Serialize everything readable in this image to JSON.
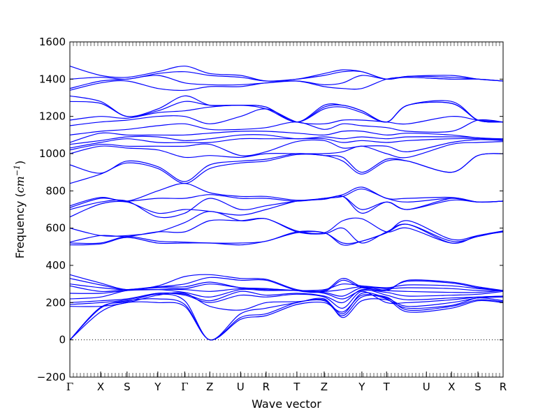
{
  "chart_data": {
    "type": "line",
    "title": "",
    "xlabel": "Wave vector",
    "ylabel": {
      "prefix": "Frequency (",
      "unit_base": "cm",
      "unit_exp": "−1",
      "suffix": ")"
    },
    "ylim": [
      -200,
      1600
    ],
    "yticks": [
      -200,
      0,
      200,
      400,
      600,
      800,
      1000,
      1200,
      1400,
      1600
    ],
    "grid": false,
    "legend": "none",
    "zero_line": {
      "y": 0,
      "style": "dotted"
    },
    "line_color": "#0000ff",
    "q_points": [
      {
        "label": "Γ",
        "x": 0.0,
        "greek": true
      },
      {
        "label": "X",
        "x": 0.071
      },
      {
        "label": "S",
        "x": 0.132
      },
      {
        "label": "Y",
        "x": 0.203
      },
      {
        "label": "Γ",
        "x": 0.265,
        "greek": true
      },
      {
        "label": "Z",
        "x": 0.323
      },
      {
        "label": "U",
        "x": 0.394
      },
      {
        "label": "R",
        "x": 0.453
      },
      {
        "label": "T",
        "x": 0.524
      },
      {
        "label": "Z",
        "x": 0.587
      },
      {
        "label": "Y",
        "x": 0.674
      },
      {
        "label": "T",
        "x": 0.731
      },
      {
        "label": "U",
        "x": 0.823
      },
      {
        "label": "X",
        "x": 0.881
      },
      {
        "label": "S",
        "x": 0.942
      },
      {
        "label": "R",
        "x": 1.0
      }
    ],
    "series": [
      {
        "values": [
          0,
          150,
          200,
          200,
          180,
          0,
          110,
          130,
          190,
          200,
          150,
          240,
          220,
          150,
          170,
          210,
          200
        ]
      },
      {
        "values": [
          0,
          170,
          210,
          220,
          190,
          0,
          120,
          140,
          200,
          210,
          130,
          230,
          230,
          160,
          180,
          215,
          205
        ]
      },
      {
        "values": [
          0,
          175,
          205,
          245,
          210,
          0,
          140,
          170,
          200,
          220,
          120,
          210,
          215,
          170,
          185,
          225,
          210
        ]
      },
      {
        "values": [
          180,
          180,
          200,
          240,
          250,
          180,
          160,
          200,
          205,
          215,
          140,
          250,
          225,
          180,
          200,
          225,
          230
        ]
      },
      {
        "values": [
          190,
          200,
          215,
          250,
          240,
          200,
          240,
          230,
          245,
          230,
          170,
          260,
          200,
          200,
          215,
          230,
          235
        ]
      },
      {
        "values": [
          200,
          210,
          220,
          250,
          245,
          210,
          260,
          240,
          250,
          235,
          200,
          270,
          240,
          215,
          225,
          230,
          235
        ]
      },
      {
        "values": [
          220,
          230,
          265,
          270,
          255,
          230,
          270,
          265,
          265,
          250,
          220,
          265,
          255,
          235,
          240,
          245,
          260
        ]
      },
      {
        "values": [
          250,
          250,
          265,
          270,
          270,
          260,
          275,
          270,
          265,
          255,
          235,
          280,
          265,
          260,
          255,
          255,
          265
        ]
      },
      {
        "values": [
          290,
          260,
          270,
          280,
          275,
          300,
          280,
          275,
          265,
          260,
          270,
          285,
          275,
          280,
          275,
          265,
          265
        ]
      },
      {
        "values": [
          300,
          280,
          270,
          285,
          285,
          310,
          280,
          275,
          265,
          270,
          300,
          290,
          280,
          295,
          290,
          275,
          265
        ]
      },
      {
        "values": [
          330,
          295,
          270,
          285,
          300,
          335,
          320,
          320,
          265,
          260,
          320,
          280,
          270,
          315,
          305,
          280,
          265
        ]
      },
      {
        "values": [
          350,
          305,
          270,
          290,
          340,
          350,
          330,
          325,
          270,
          265,
          330,
          285,
          265,
          320,
          310,
          285,
          265
        ]
      },
      {
        "values": [
          510,
          515,
          550,
          520,
          520,
          520,
          510,
          530,
          575,
          575,
          510,
          530,
          575,
          640,
          540,
          560,
          580
        ]
      },
      {
        "values": [
          520,
          520,
          555,
          530,
          525,
          520,
          520,
          530,
          580,
          575,
          520,
          530,
          575,
          620,
          530,
          555,
          585
        ]
      },
      {
        "values": [
          525,
          560,
          555,
          580,
          580,
          640,
          640,
          650,
          580,
          570,
          600,
          520,
          580,
          620,
          520,
          560,
          580
        ]
      },
      {
        "values": [
          600,
          560,
          560,
          580,
          630,
          690,
          640,
          650,
          585,
          575,
          640,
          650,
          580,
          600,
          520,
          560,
          585
        ]
      },
      {
        "values": [
          660,
          730,
          740,
          680,
          700,
          690,
          670,
          700,
          745,
          755,
          770,
          680,
          740,
          700,
          750,
          740,
          745
        ]
      },
      {
        "values": [
          700,
          740,
          745,
          660,
          680,
          760,
          700,
          720,
          745,
          755,
          770,
          700,
          740,
          700,
          760,
          740,
          745
        ]
      },
      {
        "values": [
          710,
          760,
          745,
          760,
          760,
          780,
          760,
          760,
          745,
          760,
          770,
          810,
          760,
          740,
          760,
          740,
          745
        ]
      },
      {
        "values": [
          720,
          765,
          745,
          800,
          840,
          790,
          770,
          770,
          750,
          760,
          780,
          820,
          760,
          760,
          765,
          740,
          745
        ]
      },
      {
        "values": [
          840,
          890,
          950,
          920,
          840,
          920,
          950,
          960,
          995,
          990,
          960,
          890,
          960,
          960,
          900,
          990,
          1000
        ]
      },
      {
        "values": [
          940,
          895,
          960,
          930,
          850,
          940,
          960,
          970,
          1000,
          990,
          980,
          900,
          970,
          960,
          900,
          990,
          1000
        ]
      },
      {
        "values": [
          1000,
          1040,
          1030,
          1020,
          980,
          990,
          980,
          1000,
          1000,
          1000,
          1010,
          1040,
          1000,
          980,
          1050,
          1060,
          1065
        ]
      },
      {
        "values": [
          1020,
          1050,
          1040,
          1040,
          1040,
          1050,
          990,
          1010,
          1065,
          1070,
          1030,
          1040,
          1040,
          1010,
          1060,
          1075,
          1070
        ]
      },
      {
        "values": [
          1030,
          1060,
          1080,
          1060,
          1060,
          1060,
          1080,
          1080,
          1080,
          1080,
          1060,
          1070,
          1060,
          1070,
          1080,
          1080,
          1075
        ]
      },
      {
        "values": [
          1050,
          1070,
          1090,
          1090,
          1070,
          1080,
          1100,
          1100,
          1080,
          1090,
          1080,
          1090,
          1080,
          1090,
          1090,
          1085,
          1075
        ]
      },
      {
        "values": [
          1060,
          1110,
          1100,
          1100,
          1100,
          1110,
          1120,
          1120,
          1110,
          1100,
          1120,
          1120,
          1100,
          1110,
          1100,
          1085,
          1080
        ]
      },
      {
        "values": [
          1100,
          1120,
          1130,
          1150,
          1160,
          1130,
          1130,
          1140,
          1170,
          1130,
          1160,
          1150,
          1140,
          1120,
          1120,
          1180,
          1170
        ]
      },
      {
        "values": [
          1150,
          1170,
          1180,
          1200,
          1200,
          1160,
          1200,
          1240,
          1170,
          1160,
          1180,
          1180,
          1170,
          1160,
          1200,
          1180,
          1170
        ]
      },
      {
        "values": [
          1180,
          1200,
          1190,
          1220,
          1230,
          1250,
          1260,
          1240,
          1170,
          1240,
          1250,
          1220,
          1170,
          1260,
          1280,
          1180,
          1170
        ]
      },
      {
        "values": [
          1280,
          1270,
          1200,
          1230,
          1280,
          1260,
          1260,
          1250,
          1170,
          1250,
          1260,
          1230,
          1170,
          1260,
          1270,
          1180,
          1170
        ]
      },
      {
        "values": [
          1310,
          1280,
          1200,
          1240,
          1310,
          1260,
          1260,
          1250,
          1170,
          1260,
          1260,
          1230,
          1170,
          1260,
          1270,
          1180,
          1170
        ]
      },
      {
        "values": [
          1340,
          1380,
          1390,
          1350,
          1340,
          1360,
          1360,
          1380,
          1390,
          1360,
          1350,
          1350,
          1400,
          1410,
          1400,
          1400,
          1390
        ]
      },
      {
        "values": [
          1350,
          1390,
          1400,
          1420,
          1380,
          1370,
          1370,
          1380,
          1390,
          1370,
          1380,
          1420,
          1400,
          1410,
          1400,
          1400,
          1390
        ]
      },
      {
        "values": [
          1400,
          1410,
          1400,
          1430,
          1440,
          1420,
          1410,
          1390,
          1400,
          1420,
          1440,
          1440,
          1400,
          1415,
          1410,
          1400,
          1390
        ]
      },
      {
        "values": [
          1470,
          1420,
          1410,
          1440,
          1470,
          1430,
          1420,
          1390,
          1400,
          1430,
          1450,
          1440,
          1400,
          1415,
          1420,
          1400,
          1390
        ]
      }
    ],
    "series_x": [
      0,
      0.071,
      0.132,
      0.203,
      0.265,
      0.323,
      0.394,
      0.453,
      0.524,
      0.587,
      0.63,
      0.674,
      0.731,
      0.78,
      0.881,
      0.942,
      1.0
    ]
  }
}
